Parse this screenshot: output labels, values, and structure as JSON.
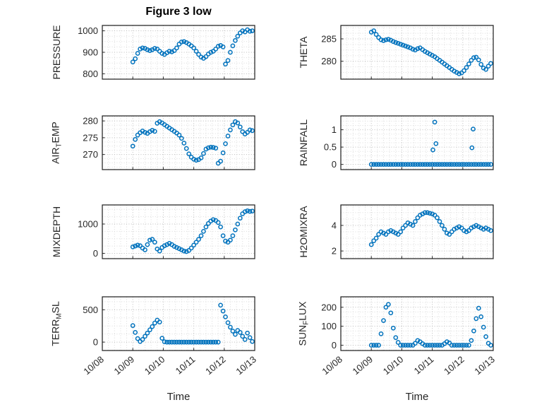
{
  "figure": {
    "title": "Figure 3 low",
    "xlabel": "Time"
  },
  "chart_data": {
    "type": "scatter",
    "title": "Figure 3 low",
    "xlabel": "Time",
    "marker_color": "#0072BD",
    "grid": "on",
    "xlim": [
      8,
      13
    ],
    "x_tick_values": [
      8,
      9,
      10,
      11,
      12,
      13
    ],
    "x_ticks": [
      "10/08",
      "10/09",
      "10/10",
      "10/11",
      "10/12",
      "10/13"
    ],
    "x_base": [
      9,
      9.08,
      9.16,
      9.24,
      9.32,
      9.4,
      9.48,
      9.56,
      9.64,
      9.72,
      9.8,
      9.88,
      9.96,
      10.04,
      10.12,
      10.2,
      10.28,
      10.36,
      10.44,
      10.52,
      10.6,
      10.68,
      10.76,
      10.84,
      10.92,
      11,
      11.08,
      11.16,
      11.24,
      11.32,
      11.4,
      11.48,
      11.56,
      11.64,
      11.72,
      11.8,
      11.88,
      11.96,
      12.04,
      12.12,
      12.2,
      12.28,
      12.36,
      12.44,
      12.52,
      12.6,
      12.68,
      12.76,
      12.84,
      12.92
    ],
    "charts": [
      {
        "name": "PRESSURE",
        "ylabel": [
          {
            "t": "PRESSURE"
          }
        ],
        "yticks": [
          800,
          900,
          1000
        ],
        "ylim": [
          775,
          1025
        ],
        "y": [
          855,
          870,
          895,
          915,
          920,
          918,
          912,
          908,
          912,
          918,
          915,
          905,
          895,
          890,
          898,
          905,
          902,
          908,
          920,
          938,
          948,
          950,
          945,
          938,
          930,
          920,
          905,
          890,
          878,
          872,
          880,
          892,
          900,
          905,
          915,
          928,
          932,
          925,
          845,
          862,
          900,
          930,
          955,
          975,
          990,
          1000,
          995,
          1005,
          998,
          1000
        ]
      },
      {
        "name": "THETA",
        "ylabel": [
          {
            "t": "THETA"
          }
        ],
        "yticks": [
          280,
          285
        ],
        "ylim": [
          276,
          288
        ],
        "y": [
          286.5,
          286.8,
          286.0,
          285.3,
          284.8,
          284.6,
          284.8,
          284.9,
          284.7,
          284.4,
          284.2,
          284.0,
          283.8,
          283.6,
          283.4,
          283.2,
          283.0,
          282.7,
          282.5,
          282.8,
          283.0,
          282.6,
          282.2,
          281.9,
          281.6,
          281.3,
          281.0,
          280.6,
          280.2,
          279.8,
          279.4,
          279.0,
          278.6,
          278.2,
          277.8,
          277.5,
          277.2,
          277.4,
          277.9,
          278.6,
          279.4,
          280.2,
          280.8,
          280.9,
          280.3,
          279.3,
          278.5,
          278.2,
          278.9,
          279.5
        ]
      },
      {
        "name": "AIR_TEMP",
        "ylabel": [
          {
            "t": "AIR"
          },
          {
            "t": "T",
            "sub": true
          },
          {
            "t": "EMP"
          }
        ],
        "yticks": [
          270,
          275,
          280
        ],
        "ylim": [
          265.5,
          281.5
        ],
        "y": [
          272.5,
          274.5,
          275.8,
          276.5,
          277.0,
          276.6,
          276.3,
          276.8,
          277.2,
          276.9,
          279.3,
          279.8,
          279.4,
          278.9,
          278.4,
          277.9,
          277.4,
          276.9,
          276.4,
          275.8,
          274.8,
          273.4,
          271.8,
          270.2,
          269.2,
          268.6,
          268.3,
          268.5,
          269.0,
          270.3,
          271.6,
          272.0,
          272.2,
          272.1,
          271.9,
          267.4,
          268.0,
          270.5,
          273.2,
          275.5,
          277.3,
          278.8,
          279.8,
          279.4,
          278.2,
          276.8,
          276.1,
          276.6,
          277.3,
          277.1
        ]
      },
      {
        "name": "RAINFALL",
        "ylabel": [
          {
            "t": "RAINFALL"
          }
        ],
        "yticks": [
          0,
          0.5,
          1
        ],
        "ylim": [
          -0.15,
          1.4
        ],
        "y": [
          0,
          0,
          0,
          0,
          0,
          0,
          0,
          0,
          0,
          0,
          0,
          0,
          0,
          0,
          0,
          0,
          0,
          0,
          0,
          0,
          0,
          0,
          0,
          0,
          0,
          0,
          0,
          0,
          0,
          0,
          0,
          0,
          0,
          0,
          0,
          0,
          0,
          0,
          0,
          0,
          0,
          0,
          0,
          0,
          0,
          0,
          0,
          0,
          0,
          0
        ],
        "extra_points": [
          [
            11.02,
            0.42
          ],
          [
            11.08,
            1.22
          ],
          [
            11.12,
            0.6
          ],
          [
            12.3,
            0.48
          ],
          [
            12.34,
            1.02
          ]
        ]
      },
      {
        "name": "MIXDEPTH",
        "ylabel": [
          {
            "t": "MIXDEPTH"
          }
        ],
        "yticks": [
          0,
          1000
        ],
        "ylim": [
          -180,
          1650
        ],
        "y": [
          220,
          250,
          280,
          260,
          180,
          120,
          300,
          450,
          480,
          380,
          150,
          80,
          200,
          260,
          300,
          340,
          300,
          240,
          200,
          160,
          120,
          80,
          60,
          100,
          180,
          280,
          380,
          480,
          600,
          750,
          900,
          1020,
          1100,
          1150,
          1120,
          1050,
          900,
          600,
          420,
          380,
          450,
          600,
          800,
          1000,
          1200,
          1350,
          1420,
          1450,
          1430,
          1440
        ]
      },
      {
        "name": "H2OMIXRA",
        "ylabel": [
          {
            "t": "H2OMIXRA"
          }
        ],
        "yticks": [
          2,
          4
        ],
        "ylim": [
          1.4,
          5.6
        ],
        "y": [
          2.5,
          2.8,
          3.0,
          3.3,
          3.5,
          3.4,
          3.3,
          3.5,
          3.6,
          3.5,
          3.4,
          3.3,
          3.5,
          3.8,
          4.0,
          4.2,
          4.1,
          4.0,
          4.3,
          4.6,
          4.8,
          4.9,
          5.0,
          5.0,
          4.95,
          4.9,
          4.8,
          4.6,
          4.3,
          4.0,
          3.7,
          3.4,
          3.3,
          3.5,
          3.7,
          3.8,
          3.9,
          3.8,
          3.6,
          3.5,
          3.6,
          3.8,
          3.9,
          4.0,
          3.9,
          3.8,
          3.7,
          3.8,
          3.7,
          3.6
        ]
      },
      {
        "name": "TERR_MSL",
        "ylabel": [
          {
            "t": "TERR"
          },
          {
            "t": "M",
            "sub": true
          },
          {
            "t": "SL"
          }
        ],
        "yticks": [
          0,
          500
        ],
        "ylim": [
          -130,
          700
        ],
        "y": [
          255,
          150,
          55,
          10,
          40,
          90,
          140,
          190,
          240,
          295,
          340,
          310,
          60,
          5,
          0,
          0,
          0,
          0,
          0,
          0,
          0,
          0,
          0,
          0,
          0,
          0,
          0,
          0,
          0,
          0,
          0,
          0,
          0,
          0,
          0,
          0,
          570,
          480,
          390,
          300,
          230,
          170,
          120,
          180,
          150,
          90,
          40,
          140,
          70,
          10
        ]
      },
      {
        "name": "SUN_FLUX",
        "ylabel": [
          {
            "t": "SUN"
          },
          {
            "t": "F",
            "sub": true
          },
          {
            "t": "LUX"
          }
        ],
        "yticks": [
          0,
          100,
          200
        ],
        "ylim": [
          -28,
          255
        ],
        "y": [
          0,
          0,
          0,
          0,
          60,
          130,
          200,
          215,
          170,
          90,
          40,
          15,
          0,
          0,
          0,
          0,
          0,
          0,
          10,
          25,
          18,
          8,
          0,
          0,
          0,
          0,
          0,
          0,
          0,
          0,
          8,
          18,
          12,
          0,
          0,
          0,
          0,
          0,
          0,
          0,
          0,
          25,
          75,
          140,
          195,
          150,
          95,
          45,
          10,
          0
        ]
      }
    ]
  }
}
